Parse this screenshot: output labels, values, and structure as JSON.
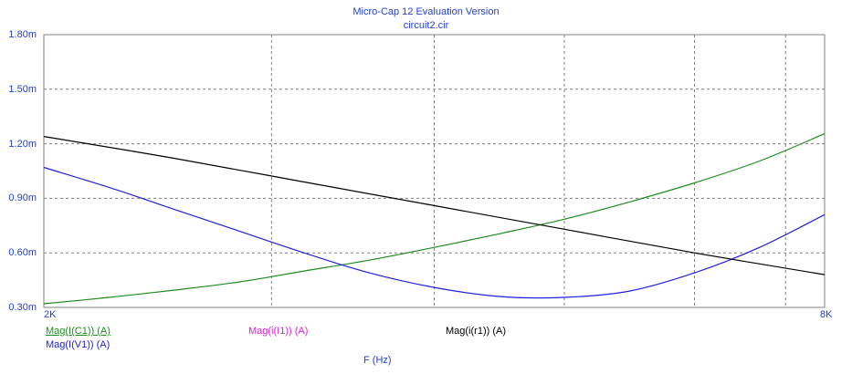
{
  "chart_data": {
    "type": "line",
    "title": "Micro-Cap 12 Evaluation Version",
    "subtitle": "circuit2.cir",
    "xlabel": "F (Hz)",
    "ylabel": "",
    "xlim": [
      2000,
      8000
    ],
    "ylim": [
      0.0003,
      0.0018
    ],
    "x_tick_labels": [
      "2K",
      "8K"
    ],
    "y_tick_labels": [
      "1.80m",
      "1.50m",
      "1.20m",
      "0.90m",
      "0.60m",
      "0.30m"
    ],
    "y_ticks": [
      0.0018,
      0.0015,
      0.0012,
      0.0009,
      0.0006,
      0.0003
    ],
    "x_grid": [
      3750,
      5000,
      6000,
      7000,
      7700
    ],
    "grid": true,
    "colors": {
      "title": "#1f3fdc",
      "tick": "#1f3fdc",
      "grid": "#808080"
    },
    "series": [
      {
        "name": "Mag(I(C1)) (A)",
        "color": "#1e8c1e",
        "x": [
          2000,
          2500,
          3000,
          3500,
          4000,
          4500,
          5000,
          5500,
          6000,
          6500,
          7000,
          7500,
          8000
        ],
        "y": [
          0.00032,
          0.000355,
          0.000395,
          0.00044,
          0.0005,
          0.00056,
          0.00063,
          0.000705,
          0.000785,
          0.00088,
          0.000985,
          0.001105,
          0.001255
        ]
      },
      {
        "name": "Mag(I(V1)) (A)",
        "color": "#2020e0",
        "x": [
          2000,
          2500,
          3000,
          3500,
          4000,
          4500,
          5000,
          5500,
          6000,
          6500,
          7000,
          7500,
          8000
        ],
        "y": [
          0.00107,
          0.00096,
          0.00084,
          0.00072,
          0.0006,
          0.00049,
          0.00041,
          0.00036,
          0.000355,
          0.00039,
          0.00049,
          0.00063,
          0.00081
        ]
      },
      {
        "name": "Mag(i(I1)) (A)",
        "color": "#e020e0",
        "x": [],
        "y": []
      },
      {
        "name": "Mag(i(r1)) (A)",
        "color": "#000000",
        "x": [
          2000,
          3000,
          4000,
          5000,
          6000,
          7000,
          8000
        ],
        "y": [
          0.00124,
          0.00112,
          0.00099,
          0.00086,
          0.00073,
          0.0006,
          0.00048
        ]
      }
    ]
  }
}
